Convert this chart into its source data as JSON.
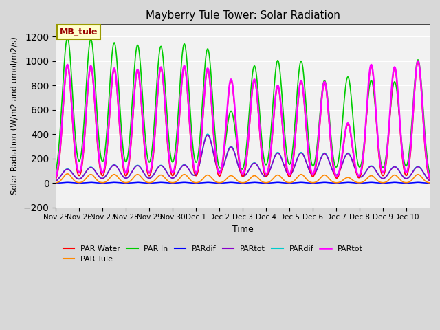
{
  "title": "Mayberry Tule Tower: Solar Radiation",
  "xlabel": "Time",
  "ylabel": "Solar Radiation (W/m2 and umol/m2/s)",
  "ylim": [
    -200,
    1300
  ],
  "yticks": [
    -200,
    0,
    200,
    400,
    600,
    800,
    1000,
    1200
  ],
  "fig_bg_color": "#d8d8d8",
  "plot_bg": "#f2f2f2",
  "annotation_text": "MB_tule",
  "annotation_bg": "#ffffcc",
  "annotation_border": "#999900",
  "annotation_text_color": "#990000",
  "xtick_labels": [
    "Nov 25",
    "Nov 26",
    "Nov 27",
    "Nov 28",
    "Nov 29",
    "Nov 30",
    "Dec 1",
    "Dec 2",
    "Dec 3",
    "Dec 4",
    "Dec 5",
    "Dec 6",
    "Dec 7",
    "Dec 8",
    "Dec 9",
    "Dec 10"
  ],
  "n_days": 16,
  "peaks_green": [
    1190,
    1180,
    1150,
    1130,
    1120,
    1140,
    1100,
    590,
    960,
    1005,
    1000,
    840,
    870,
    840,
    830,
    1010
  ],
  "peaks_magenta": [
    970,
    960,
    940,
    930,
    950,
    960,
    940,
    850,
    850,
    800,
    840,
    830,
    490,
    970,
    950,
    1000
  ],
  "peaks_red": [
    960,
    950,
    930,
    920,
    940,
    950,
    930,
    840,
    840,
    790,
    830,
    820,
    480,
    960,
    940,
    990
  ],
  "peaks_orange": [
    75,
    70,
    70,
    70,
    65,
    70,
    65,
    60,
    60,
    65,
    70,
    65,
    45,
    60,
    65,
    70
  ],
  "peaks_cyan": [
    115,
    130,
    150,
    145,
    145,
    150,
    400,
    300,
    165,
    250,
    250,
    245,
    245,
    140,
    135,
    135
  ],
  "peaks_purple": [
    112,
    127,
    147,
    142,
    142,
    147,
    392,
    294,
    162,
    245,
    245,
    240,
    240,
    137,
    132,
    132
  ],
  "peaks_blue": [
    5,
    5,
    5,
    5,
    5,
    5,
    5,
    5,
    5,
    5,
    5,
    5,
    5,
    5,
    5,
    5
  ],
  "series_colors": [
    "#ff0000",
    "#ff8800",
    "#00cc00",
    "#0000ff",
    "#8800cc",
    "#00cccc",
    "#ff00ff"
  ],
  "series_labels": [
    "PAR Water",
    "PAR Tule",
    "PAR In",
    "PARdif",
    "PARtot",
    "PARdif",
    "PARtot"
  ],
  "series_lws": [
    1.2,
    1.2,
    1.2,
    1.2,
    1.2,
    1.2,
    1.8
  ],
  "series_widths": [
    0.19,
    0.18,
    0.22,
    0.15,
    0.25,
    0.25,
    0.2
  ]
}
